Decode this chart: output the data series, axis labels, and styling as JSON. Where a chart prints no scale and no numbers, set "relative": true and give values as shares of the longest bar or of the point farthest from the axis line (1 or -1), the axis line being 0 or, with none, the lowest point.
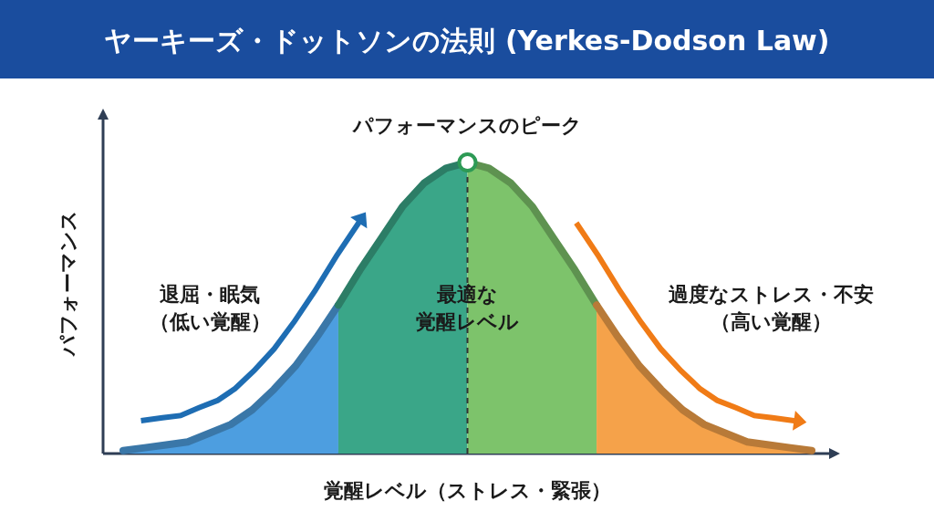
{
  "chart_data": {
    "type": "area",
    "title": "ヤーキーズ・ドットソンの法則 (Yerkes-Dodson Law)",
    "xlabel": "覚醒レベル（ストレス・緊張）",
    "ylabel": "パフォーマンス",
    "relative": true,
    "categories": [
      null,
      null,
      null,
      null,
      null,
      null,
      null,
      null,
      null,
      null,
      null,
      null,
      null,
      null,
      null,
      null,
      null,
      null,
      null,
      null,
      null,
      null,
      null,
      null,
      null,
      null,
      null,
      null,
      null,
      null,
      null,
      null,
      null
    ],
    "series": [
      {
        "color": "#4d9ee0",
        "values": [
          0.01,
          0.02,
          0.03,
          0.04,
          0.07,
          0.1,
          0.15,
          0.22,
          0.3,
          0.4,
          0.51,
          null,
          null,
          null,
          null,
          null,
          null,
          null,
          null,
          null,
          null,
          null,
          null,
          null,
          null,
          null,
          null,
          null,
          null,
          null,
          null,
          null,
          null
        ]
      },
      {
        "color": "#3aa688",
        "values": [
          null,
          null,
          null,
          null,
          null,
          null,
          null,
          null,
          null,
          null,
          0.51,
          0.63,
          0.74,
          0.85,
          0.93,
          0.98,
          1.0,
          null,
          null,
          null,
          null,
          null,
          null,
          null,
          null,
          null,
          null,
          null,
          null,
          null,
          null,
          null,
          null
        ]
      },
      {
        "color": "#7dc36b",
        "values": [
          null,
          null,
          null,
          null,
          null,
          null,
          null,
          null,
          null,
          null,
          null,
          null,
          null,
          null,
          null,
          null,
          1.0,
          0.98,
          0.93,
          0.85,
          0.74,
          0.63,
          0.51,
          null,
          null,
          null,
          null,
          null,
          null,
          null,
          null,
          null,
          null
        ]
      },
      {
        "color": "#f5a24a",
        "values": [
          null,
          null,
          null,
          null,
          null,
          null,
          null,
          null,
          null,
          null,
          null,
          null,
          null,
          null,
          null,
          null,
          null,
          null,
          null,
          null,
          null,
          null,
          0.51,
          0.4,
          0.3,
          0.22,
          0.15,
          0.1,
          0.07,
          0.04,
          0.03,
          0.02,
          0.01
        ]
      }
    ],
    "annotations": [
      "パフォーマンスのピーク",
      "退屈・眠気（低い覚醒）",
      "最適な覚醒レベル",
      "過度なストレス・不安（高い覚醒）"
    ]
  }
}
